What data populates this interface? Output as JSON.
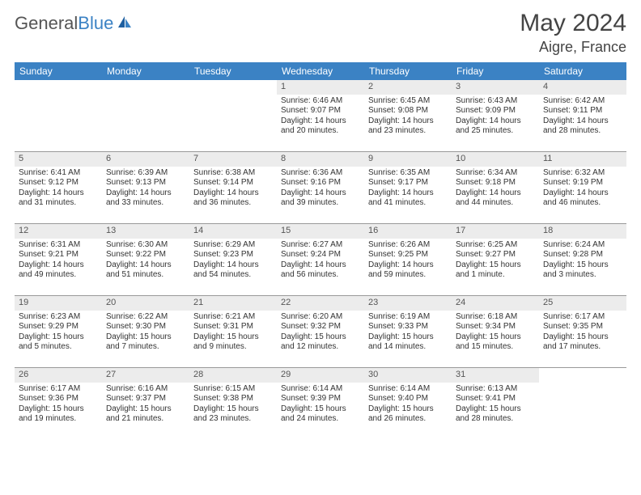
{
  "logo": {
    "text_gray": "General",
    "text_blue": "Blue"
  },
  "title": "May 2024",
  "location": "Aigre, France",
  "colors": {
    "header_bg": "#3b82c4",
    "daynum_bg": "#ececec",
    "text": "#333333",
    "border": "#999999"
  },
  "day_names": [
    "Sunday",
    "Monday",
    "Tuesday",
    "Wednesday",
    "Thursday",
    "Friday",
    "Saturday"
  ],
  "weeks": [
    [
      {
        "empty": true
      },
      {
        "empty": true
      },
      {
        "empty": true
      },
      {
        "n": "1",
        "sunrise": "6:46 AM",
        "sunset": "9:07 PM",
        "daylight": "14 hours and 20 minutes."
      },
      {
        "n": "2",
        "sunrise": "6:45 AM",
        "sunset": "9:08 PM",
        "daylight": "14 hours and 23 minutes."
      },
      {
        "n": "3",
        "sunrise": "6:43 AM",
        "sunset": "9:09 PM",
        "daylight": "14 hours and 25 minutes."
      },
      {
        "n": "4",
        "sunrise": "6:42 AM",
        "sunset": "9:11 PM",
        "daylight": "14 hours and 28 minutes."
      }
    ],
    [
      {
        "n": "5",
        "sunrise": "6:41 AM",
        "sunset": "9:12 PM",
        "daylight": "14 hours and 31 minutes."
      },
      {
        "n": "6",
        "sunrise": "6:39 AM",
        "sunset": "9:13 PM",
        "daylight": "14 hours and 33 minutes."
      },
      {
        "n": "7",
        "sunrise": "6:38 AM",
        "sunset": "9:14 PM",
        "daylight": "14 hours and 36 minutes."
      },
      {
        "n": "8",
        "sunrise": "6:36 AM",
        "sunset": "9:16 PM",
        "daylight": "14 hours and 39 minutes."
      },
      {
        "n": "9",
        "sunrise": "6:35 AM",
        "sunset": "9:17 PM",
        "daylight": "14 hours and 41 minutes."
      },
      {
        "n": "10",
        "sunrise": "6:34 AM",
        "sunset": "9:18 PM",
        "daylight": "14 hours and 44 minutes."
      },
      {
        "n": "11",
        "sunrise": "6:32 AM",
        "sunset": "9:19 PM",
        "daylight": "14 hours and 46 minutes."
      }
    ],
    [
      {
        "n": "12",
        "sunrise": "6:31 AM",
        "sunset": "9:21 PM",
        "daylight": "14 hours and 49 minutes."
      },
      {
        "n": "13",
        "sunrise": "6:30 AM",
        "sunset": "9:22 PM",
        "daylight": "14 hours and 51 minutes."
      },
      {
        "n": "14",
        "sunrise": "6:29 AM",
        "sunset": "9:23 PM",
        "daylight": "14 hours and 54 minutes."
      },
      {
        "n": "15",
        "sunrise": "6:27 AM",
        "sunset": "9:24 PM",
        "daylight": "14 hours and 56 minutes."
      },
      {
        "n": "16",
        "sunrise": "6:26 AM",
        "sunset": "9:25 PM",
        "daylight": "14 hours and 59 minutes."
      },
      {
        "n": "17",
        "sunrise": "6:25 AM",
        "sunset": "9:27 PM",
        "daylight": "15 hours and 1 minute."
      },
      {
        "n": "18",
        "sunrise": "6:24 AM",
        "sunset": "9:28 PM",
        "daylight": "15 hours and 3 minutes."
      }
    ],
    [
      {
        "n": "19",
        "sunrise": "6:23 AM",
        "sunset": "9:29 PM",
        "daylight": "15 hours and 5 minutes."
      },
      {
        "n": "20",
        "sunrise": "6:22 AM",
        "sunset": "9:30 PM",
        "daylight": "15 hours and 7 minutes."
      },
      {
        "n": "21",
        "sunrise": "6:21 AM",
        "sunset": "9:31 PM",
        "daylight": "15 hours and 9 minutes."
      },
      {
        "n": "22",
        "sunrise": "6:20 AM",
        "sunset": "9:32 PM",
        "daylight": "15 hours and 12 minutes."
      },
      {
        "n": "23",
        "sunrise": "6:19 AM",
        "sunset": "9:33 PM",
        "daylight": "15 hours and 14 minutes."
      },
      {
        "n": "24",
        "sunrise": "6:18 AM",
        "sunset": "9:34 PM",
        "daylight": "15 hours and 15 minutes."
      },
      {
        "n": "25",
        "sunrise": "6:17 AM",
        "sunset": "9:35 PM",
        "daylight": "15 hours and 17 minutes."
      }
    ],
    [
      {
        "n": "26",
        "sunrise": "6:17 AM",
        "sunset": "9:36 PM",
        "daylight": "15 hours and 19 minutes."
      },
      {
        "n": "27",
        "sunrise": "6:16 AM",
        "sunset": "9:37 PM",
        "daylight": "15 hours and 21 minutes."
      },
      {
        "n": "28",
        "sunrise": "6:15 AM",
        "sunset": "9:38 PM",
        "daylight": "15 hours and 23 minutes."
      },
      {
        "n": "29",
        "sunrise": "6:14 AM",
        "sunset": "9:39 PM",
        "daylight": "15 hours and 24 minutes."
      },
      {
        "n": "30",
        "sunrise": "6:14 AM",
        "sunset": "9:40 PM",
        "daylight": "15 hours and 26 minutes."
      },
      {
        "n": "31",
        "sunrise": "6:13 AM",
        "sunset": "9:41 PM",
        "daylight": "15 hours and 28 minutes."
      },
      {
        "empty": true
      }
    ]
  ],
  "labels": {
    "sunrise": "Sunrise:",
    "sunset": "Sunset:",
    "daylight": "Daylight:"
  }
}
